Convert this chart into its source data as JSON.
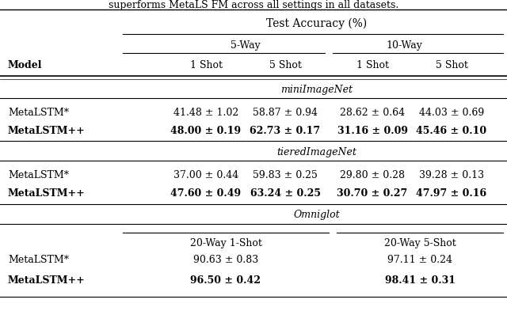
{
  "title": "Test Accuracy (%)",
  "top_text": "superforms MetaLS FM across all settings in all datasets.",
  "col_headers_5way": [
    "1 Shot",
    "5 Shot"
  ],
  "col_headers_10way": [
    "1 Shot",
    "5 Shot"
  ],
  "col_headers_omni": [
    "20-Way 1-Shot",
    "20-Way 5-Shot"
  ],
  "way_headers": [
    "5-Way",
    "10-Way"
  ],
  "sections": [
    {
      "name": "miniImageNet",
      "rows": [
        {
          "model": "MetaLSTM*",
          "bold": false,
          "values": [
            "41.48 ± 1.02",
            "58.87 ± 0.94",
            "28.62 ± 0.64",
            "44.03 ± 0.69"
          ]
        },
        {
          "model": "MetaLSTM++",
          "bold": true,
          "values": [
            "48.00 ± 0.19",
            "62.73 ± 0.17",
            "31.16 ± 0.09",
            "45.46 ± 0.10"
          ]
        }
      ]
    },
    {
      "name": "tieredImageNet",
      "rows": [
        {
          "model": "MetaLSTM*",
          "bold": false,
          "values": [
            "37.00 ± 0.44",
            "59.83 ± 0.25",
            "29.80 ± 0.28",
            "39.28 ± 0.13"
          ]
        },
        {
          "model": "MetaLSTM++",
          "bold": true,
          "values": [
            "47.60 ± 0.49",
            "63.24 ± 0.25",
            "30.70 ± 0.27",
            "47.97 ± 0.16"
          ]
        }
      ]
    },
    {
      "name": "Omniglot",
      "rows": [
        {
          "model": "MetaLSTM*",
          "bold": false,
          "values": [
            "90.63 ± 0.83",
            "97.11 ± 0.24"
          ]
        },
        {
          "model": "MetaLSTM++",
          "bold": true,
          "values": [
            "96.50 ± 0.42",
            "98.41 ± 0.31"
          ]
        }
      ]
    }
  ],
  "bg_color": "#ffffff",
  "text_color": "#000000",
  "font_size": 9.0,
  "header_font_size": 10.0
}
